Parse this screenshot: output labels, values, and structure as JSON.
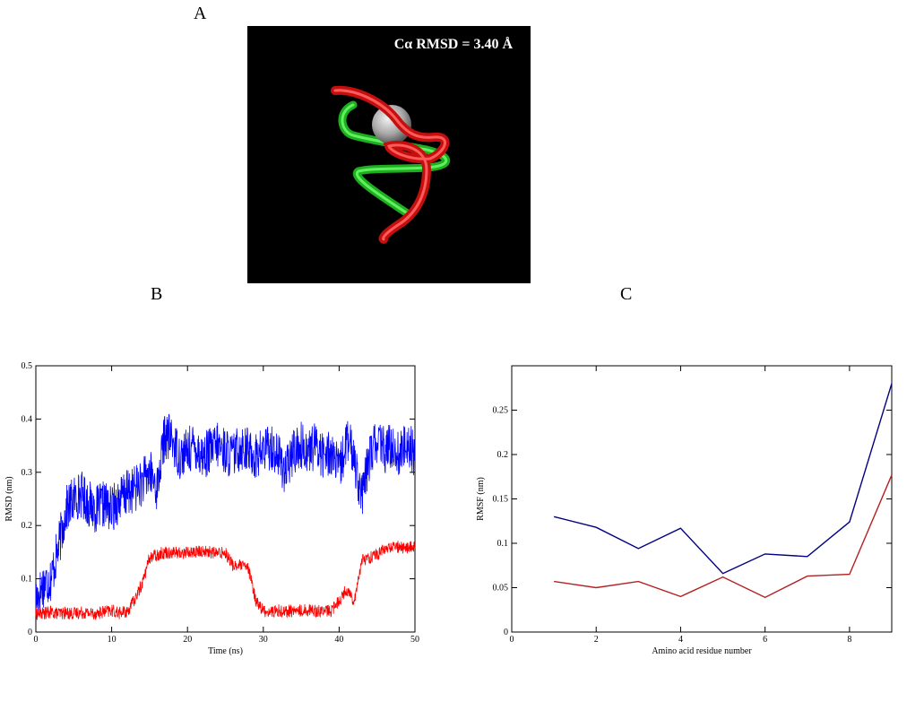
{
  "panels": {
    "a": "A",
    "b": "B",
    "c": "C"
  },
  "structure_image": {
    "annotation": "Cα RMSD = 3.40 Å",
    "colors": {
      "background": "#000000",
      "tube_1": "#dd1111",
      "tube_2": "#22cc22",
      "sphere": "#bdbdbd"
    }
  },
  "chart_data": [
    {
      "type": "line",
      "panel": "B",
      "xlabel": "Time (ns)",
      "ylabel": "RMSD (nm)",
      "xlim": [
        0,
        50
      ],
      "ylim": [
        0,
        0.5
      ],
      "xticks": [
        0,
        10,
        20,
        30,
        40,
        50
      ],
      "yticks": [
        0,
        0.1,
        0.2,
        0.3,
        0.4,
        0.5
      ],
      "ytick_labels": [
        "0",
        "0.1",
        "0.2",
        "0.3",
        "0.4",
        "0.5"
      ],
      "series": [
        {
          "color": "#0000ff",
          "x": [
            0,
            1,
            2,
            3,
            4,
            5,
            6,
            7,
            8,
            9,
            10,
            11,
            12,
            13,
            14,
            15,
            16,
            17,
            18,
            19,
            20,
            21,
            22,
            23,
            24,
            25,
            26,
            27,
            28,
            29,
            30,
            31,
            32,
            33,
            34,
            35,
            36,
            37,
            38,
            39,
            40,
            41,
            42,
            43,
            44,
            45,
            46,
            47,
            48,
            49,
            50
          ],
          "y": [
            0.06,
            0.09,
            0.1,
            0.16,
            0.23,
            0.25,
            0.26,
            0.24,
            0.23,
            0.24,
            0.23,
            0.25,
            0.26,
            0.27,
            0.28,
            0.3,
            0.27,
            0.37,
            0.36,
            0.33,
            0.34,
            0.35,
            0.33,
            0.34,
            0.35,
            0.34,
            0.33,
            0.35,
            0.34,
            0.33,
            0.34,
            0.35,
            0.33,
            0.3,
            0.34,
            0.35,
            0.34,
            0.35,
            0.33,
            0.34,
            0.3,
            0.36,
            0.33,
            0.25,
            0.33,
            0.36,
            0.34,
            0.35,
            0.33,
            0.36,
            0.33
          ]
        },
        {
          "color": "#ff0000",
          "x": [
            0,
            1,
            2,
            3,
            4,
            5,
            6,
            7,
            8,
            9,
            10,
            11,
            12,
            13,
            14,
            15,
            16,
            17,
            18,
            19,
            20,
            21,
            22,
            23,
            24,
            25,
            26,
            27,
            28,
            29,
            30,
            31,
            32,
            33,
            34,
            35,
            36,
            37,
            38,
            39,
            40,
            41,
            42,
            43,
            44,
            45,
            46,
            47,
            48,
            49,
            50
          ],
          "y": [
            0.035,
            0.035,
            0.037,
            0.035,
            0.036,
            0.035,
            0.037,
            0.036,
            0.035,
            0.038,
            0.04,
            0.036,
            0.037,
            0.06,
            0.09,
            0.14,
            0.145,
            0.15,
            0.15,
            0.148,
            0.15,
            0.15,
            0.152,
            0.15,
            0.148,
            0.15,
            0.125,
            0.125,
            0.12,
            0.06,
            0.04,
            0.038,
            0.04,
            0.039,
            0.04,
            0.04,
            0.042,
            0.04,
            0.039,
            0.04,
            0.06,
            0.08,
            0.06,
            0.135,
            0.14,
            0.145,
            0.155,
            0.16,
            0.16,
            0.158,
            0.16
          ]
        }
      ]
    },
    {
      "type": "line",
      "panel": "C",
      "xlabel": "Amino acid residue number",
      "ylabel": "RMSF (nm)",
      "xlim": [
        0,
        9
      ],
      "ylim": [
        0,
        0.3
      ],
      "xticks": [
        0,
        2,
        4,
        6,
        8
      ],
      "yticks": [
        0,
        0.05,
        0.1,
        0.15,
        0.2,
        0.25
      ],
      "ytick_labels": [
        "0",
        "0.05",
        "0.1",
        "0.15",
        "0.2",
        "0.25"
      ],
      "series": [
        {
          "color": "#000080",
          "x": [
            1,
            2,
            3,
            4,
            5,
            6,
            7,
            8,
            9
          ],
          "y": [
            0.13,
            0.118,
            0.094,
            0.117,
            0.066,
            0.088,
            0.085,
            0.124,
            0.28
          ]
        },
        {
          "color": "#b22222",
          "x": [
            1,
            2,
            3,
            4,
            5,
            6,
            7,
            8,
            9
          ],
          "y": [
            0.057,
            0.05,
            0.057,
            0.04,
            0.062,
            0.039,
            0.063,
            0.065,
            0.177
          ]
        }
      ]
    }
  ]
}
